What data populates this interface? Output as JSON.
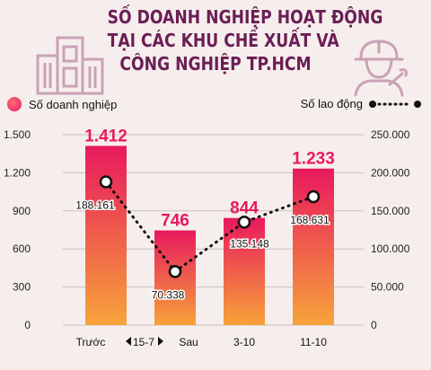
{
  "title_lines": [
    "SỐ DOANH NGHIỆP HOẠT ĐỘNG",
    "TẠI CÁC KHU CHẾ XUẤT VÀ",
    "CÔNG NGHIỆP TP.HCM"
  ],
  "colors": {
    "title": "#6b1e55",
    "bar_top": "#e8195e",
    "bar_bottom": "#f7a33a",
    "bar_label": "#e8195e",
    "line": "#111111",
    "background": "#f6eeed"
  },
  "chart_data": {
    "type": "bar",
    "categories": [
      "Trước",
      "Sau",
      "3-10",
      "11-10"
    ],
    "x_tick_labels": [
      "Trước",
      "15-7",
      "Sau",
      "3-10",
      "11-10"
    ],
    "series": [
      {
        "name": "Số doanh nghiệp",
        "axis": "left",
        "values": [
          1412,
          746,
          844,
          1233
        ],
        "labels": [
          "1.412",
          "746",
          "844",
          "1.233"
        ]
      },
      {
        "name": "Số lao động",
        "axis": "right",
        "type": "line",
        "values": [
          188161,
          70338,
          135148,
          168631
        ],
        "labels": [
          "188.161",
          "70.338",
          "135.148",
          "168.631"
        ]
      }
    ],
    "left_axis": {
      "ylim": [
        0,
        1500
      ],
      "ticks": [
        0,
        300,
        600,
        900,
        1200,
        1500
      ],
      "tick_labels": [
        "0",
        "300",
        "600",
        "900",
        "1.200",
        "1.500"
      ]
    },
    "right_axis": {
      "ylim": [
        0,
        250000
      ],
      "ticks": [
        0,
        50000,
        100000,
        150000,
        200000,
        250000
      ],
      "tick_labels": [
        "0",
        "50.000",
        "100.000",
        "150.000",
        "200.000",
        "250.000"
      ]
    },
    "grid": true,
    "legend": "top"
  }
}
